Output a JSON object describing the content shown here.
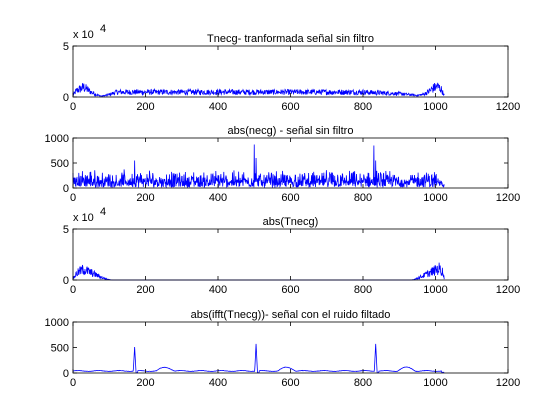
{
  "chart_data": [
    {
      "type": "line",
      "title": "Tnecg- tranformada señal sin filtro",
      "xlim": [
        0,
        1200
      ],
      "ylim": [
        0,
        5
      ],
      "xticks": [
        "0",
        "200",
        "400",
        "600",
        "800",
        "1000",
        "1200"
      ],
      "yticks": [
        "0",
        "5"
      ],
      "yexponent": "x 10",
      "yexponent_power": "4",
      "series": [
        {
          "color": "#0000ff",
          "shape": "fft_magnitude",
          "x_end": 1024,
          "x": [
            0,
            10,
            20,
            30,
            40,
            50,
            60,
            70,
            80,
            100,
            120,
            200,
            300,
            400,
            500,
            600,
            700,
            800,
            900,
            950,
            965,
            975,
            985,
            995,
            1005,
            1015,
            1024
          ],
          "y": [
            0.2,
            0.8,
            1.0,
            1.2,
            0.9,
            0.6,
            0.4,
            0.2,
            0.1,
            0.3,
            0.6,
            0.6,
            0.6,
            0.6,
            0.6,
            0.6,
            0.6,
            0.6,
            0.4,
            0.2,
            0.3,
            0.5,
            0.8,
            1.1,
            1.3,
            1.0,
            0.2
          ]
        }
      ]
    },
    {
      "type": "line",
      "title": "abs(necg) - señal sin filtro",
      "xlim": [
        0,
        1200
      ],
      "ylim": [
        0,
        1000
      ],
      "xticks": [
        "0",
        "200",
        "400",
        "600",
        "800",
        "1000",
        "1200"
      ],
      "yticks": [
        "0",
        "500",
        "1000"
      ],
      "series": [
        {
          "color": "#0000ff",
          "shape": "noisy_signal",
          "x_end": 1024,
          "baseline": 150,
          "peaks": [
            [
              170,
              550
            ],
            [
              500,
              870
            ],
            [
              505,
              600
            ],
            [
              830,
              850
            ],
            [
              835,
              550
            ]
          ]
        }
      ]
    },
    {
      "type": "line",
      "title": "abs(Tnecg)",
      "xlim": [
        0,
        1200
      ],
      "ylim": [
        0,
        5
      ],
      "xticks": [
        "0",
        "200",
        "400",
        "600",
        "800",
        "1000",
        "1200"
      ],
      "yticks": [
        "0",
        "5"
      ],
      "yexponent": "x 10",
      "yexponent_power": "4",
      "series": [
        {
          "color": "#0000ff",
          "shape": "filtered_fft",
          "x_end": 1024,
          "x": [
            0,
            10,
            20,
            30,
            40,
            50,
            60,
            70,
            80,
            90,
            100,
            110,
            930,
            940,
            950,
            960,
            970,
            980,
            990,
            1000,
            1010,
            1020,
            1024
          ],
          "y": [
            0.2,
            0.8,
            1.1,
            1.3,
            1.1,
            0.9,
            0.7,
            0.5,
            0.3,
            0.15,
            0.05,
            0,
            0,
            0.05,
            0.2,
            0.4,
            0.6,
            0.8,
            1.0,
            1.2,
            1.4,
            1.0,
            0.2
          ]
        }
      ]
    },
    {
      "type": "line",
      "title": "abs(ifft(Tnecg))- señal con el ruido filtado",
      "xlim": [
        0,
        1200
      ],
      "ylim": [
        0,
        1000
      ],
      "xticks": [
        "0",
        "200",
        "400",
        "600",
        "800",
        "1000",
        "1200"
      ],
      "yticks": [
        "0",
        "500",
        "1000"
      ],
      "series": [
        {
          "color": "#0000ff",
          "shape": "ecg",
          "x_end": 1024,
          "baseline": 40,
          "beats": [
            [
              170,
              510
            ],
            [
              505,
              570
            ],
            [
              835,
              570
            ]
          ]
        }
      ]
    }
  ]
}
